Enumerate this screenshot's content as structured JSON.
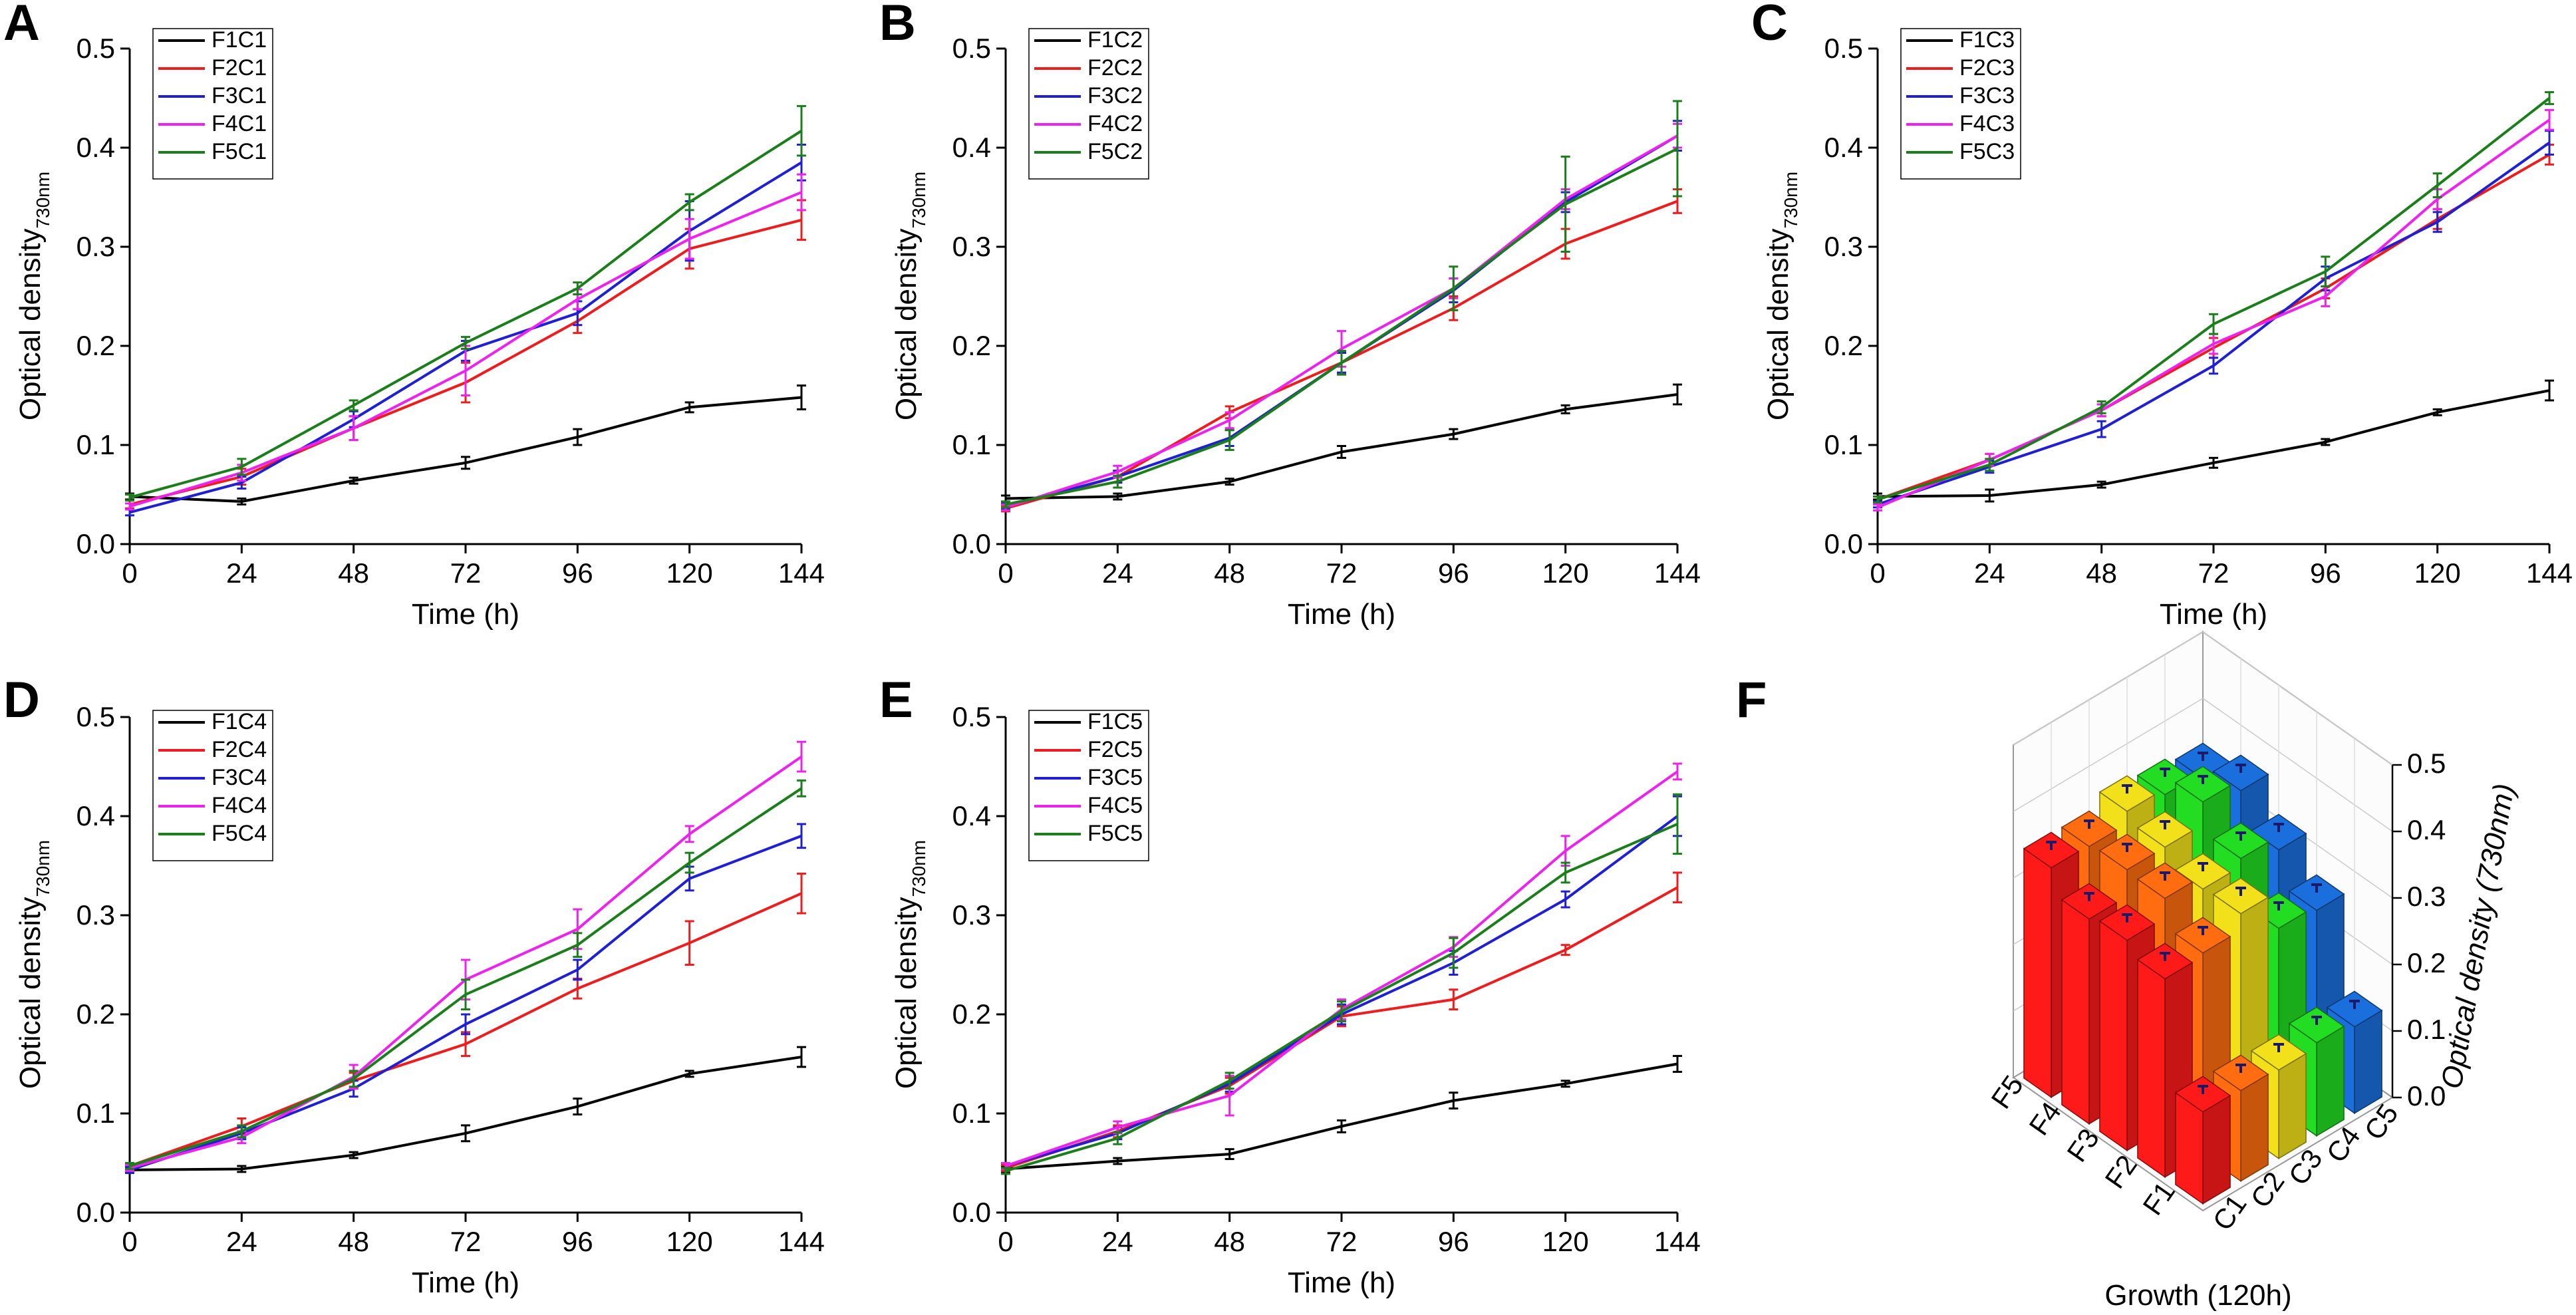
{
  "figure": {
    "series_colors": [
      "#000000",
      "#ee1c1c",
      "#1f1fd6",
      "#ee22ee",
      "#1a7f1a"
    ],
    "ylabel": "Optical density",
    "ylabel_sub": "730nm",
    "xlabel": "Time (h)"
  },
  "chart_data": [
    {
      "panel": "A",
      "type": "line",
      "x": [
        0,
        24,
        48,
        72,
        96,
        120,
        144
      ],
      "xticks": [
        "0",
        "24",
        "48",
        "72",
        "96",
        "120",
        "144"
      ],
      "yticks": [
        "0.0",
        "0.1",
        "0.2",
        "0.3",
        "0.4",
        "0.5"
      ],
      "xlim": [
        0,
        144
      ],
      "ylim": [
        0,
        0.5
      ],
      "series": [
        {
          "name": "F1C1",
          "values": [
            0.048,
            0.043,
            0.064,
            0.082,
            0.108,
            0.138,
            0.148
          ],
          "err": [
            0.003,
            0.003,
            0.003,
            0.006,
            0.008,
            0.005,
            0.012
          ]
        },
        {
          "name": "F2C1",
          "values": [
            0.04,
            0.068,
            0.117,
            0.163,
            0.225,
            0.298,
            0.327
          ],
          "err": [
            0.004,
            0.008,
            0.012,
            0.02,
            0.012,
            0.02,
            0.02
          ]
        },
        {
          "name": "F3C1",
          "values": [
            0.032,
            0.062,
            0.126,
            0.195,
            0.233,
            0.316,
            0.385
          ],
          "err": [
            0.003,
            0.006,
            0.008,
            0.01,
            0.012,
            0.03,
            0.018
          ]
        },
        {
          "name": "F4C1",
          "values": [
            0.038,
            0.072,
            0.117,
            0.175,
            0.247,
            0.308,
            0.355
          ],
          "err": [
            0.003,
            0.008,
            0.012,
            0.025,
            0.01,
            0.02,
            0.018
          ]
        },
        {
          "name": "F5C1",
          "values": [
            0.047,
            0.078,
            0.14,
            0.203,
            0.258,
            0.345,
            0.417
          ],
          "err": [
            0.003,
            0.008,
            0.005,
            0.006,
            0.006,
            0.008,
            0.025
          ]
        }
      ]
    },
    {
      "panel": "B",
      "type": "line",
      "x": [
        0,
        24,
        48,
        72,
        96,
        120,
        144
      ],
      "xticks": [
        "0",
        "24",
        "48",
        "72",
        "96",
        "120",
        "144"
      ],
      "yticks": [
        "0.0",
        "0.1",
        "0.2",
        "0.3",
        "0.4",
        "0.5"
      ],
      "xlim": [
        0,
        144
      ],
      "ylim": [
        0,
        0.5
      ],
      "series": [
        {
          "name": "F1C2",
          "values": [
            0.046,
            0.048,
            0.063,
            0.093,
            0.111,
            0.136,
            0.151
          ],
          "err": [
            0.003,
            0.003,
            0.003,
            0.006,
            0.005,
            0.004,
            0.01
          ]
        },
        {
          "name": "F2C2",
          "values": [
            0.036,
            0.068,
            0.133,
            0.183,
            0.238,
            0.303,
            0.346
          ],
          "err": [
            0.003,
            0.006,
            0.006,
            0.01,
            0.012,
            0.015,
            0.012
          ]
        },
        {
          "name": "F3C2",
          "values": [
            0.038,
            0.068,
            0.107,
            0.183,
            0.256,
            0.345,
            0.412
          ],
          "err": [
            0.003,
            0.006,
            0.008,
            0.01,
            0.012,
            0.01,
            0.015
          ]
        },
        {
          "name": "F4C2",
          "values": [
            0.037,
            0.073,
            0.125,
            0.197,
            0.258,
            0.348,
            0.412
          ],
          "err": [
            0.003,
            0.006,
            0.008,
            0.018,
            0.01,
            0.01,
            0.012
          ]
        },
        {
          "name": "F5C2",
          "values": [
            0.04,
            0.063,
            0.105,
            0.183,
            0.258,
            0.343,
            0.399
          ],
          "err": [
            0.003,
            0.006,
            0.01,
            0.012,
            0.022,
            0.048,
            0.048
          ]
        }
      ]
    },
    {
      "panel": "C",
      "type": "line",
      "x": [
        0,
        24,
        48,
        72,
        96,
        120,
        144
      ],
      "xticks": [
        "0",
        "24",
        "48",
        "72",
        "96",
        "120",
        "144"
      ],
      "yticks": [
        "0.0",
        "0.1",
        "0.2",
        "0.3",
        "0.4",
        "0.5"
      ],
      "xlim": [
        0,
        144
      ],
      "ylim": [
        0,
        0.5
      ],
      "series": [
        {
          "name": "F1C3",
          "values": [
            0.048,
            0.049,
            0.06,
            0.082,
            0.103,
            0.133,
            0.155
          ],
          "err": [
            0.003,
            0.006,
            0.003,
            0.005,
            0.003,
            0.003,
            0.01
          ]
        },
        {
          "name": "F2C3",
          "values": [
            0.045,
            0.085,
            0.135,
            0.198,
            0.258,
            0.328,
            0.393
          ],
          "err": [
            0.003,
            0.006,
            0.006,
            0.01,
            0.01,
            0.01,
            0.01
          ]
        },
        {
          "name": "F3C3",
          "values": [
            0.04,
            0.078,
            0.116,
            0.18,
            0.268,
            0.325,
            0.405
          ],
          "err": [
            0.003,
            0.006,
            0.008,
            0.008,
            0.012,
            0.01,
            0.012
          ]
        },
        {
          "name": "F4C3",
          "values": [
            0.037,
            0.085,
            0.135,
            0.202,
            0.25,
            0.348,
            0.428
          ],
          "err": [
            0.003,
            0.006,
            0.006,
            0.01,
            0.01,
            0.01,
            0.01
          ]
        },
        {
          "name": "F5C3",
          "values": [
            0.045,
            0.08,
            0.138,
            0.222,
            0.275,
            0.362,
            0.45
          ],
          "err": [
            0.003,
            0.006,
            0.006,
            0.01,
            0.015,
            0.012,
            0.006
          ]
        }
      ]
    },
    {
      "panel": "D",
      "type": "line",
      "x": [
        0,
        24,
        48,
        72,
        96,
        120,
        144
      ],
      "xticks": [
        "0",
        "24",
        "48",
        "72",
        "96",
        "120",
        "144"
      ],
      "yticks": [
        "0.0",
        "0.1",
        "0.2",
        "0.3",
        "0.4",
        "0.5"
      ],
      "xlim": [
        0,
        144
      ],
      "ylim": [
        0,
        0.5
      ],
      "series": [
        {
          "name": "F1C4",
          "values": [
            0.043,
            0.044,
            0.058,
            0.08,
            0.107,
            0.14,
            0.157
          ],
          "err": [
            0.003,
            0.003,
            0.003,
            0.008,
            0.008,
            0.003,
            0.01
          ]
        },
        {
          "name": "F2C4",
          "values": [
            0.047,
            0.087,
            0.133,
            0.17,
            0.226,
            0.272,
            0.322
          ],
          "err": [
            0.003,
            0.008,
            0.008,
            0.012,
            0.01,
            0.022,
            0.02
          ]
        },
        {
          "name": "F3C4",
          "values": [
            0.043,
            0.08,
            0.125,
            0.19,
            0.245,
            0.337,
            0.38
          ],
          "err": [
            0.003,
            0.006,
            0.008,
            0.01,
            0.01,
            0.012,
            0.012
          ]
        },
        {
          "name": "F4C4",
          "values": [
            0.045,
            0.076,
            0.137,
            0.235,
            0.286,
            0.382,
            0.46
          ],
          "err": [
            0.003,
            0.006,
            0.012,
            0.02,
            0.02,
            0.008,
            0.015
          ]
        },
        {
          "name": "F5C4",
          "values": [
            0.047,
            0.082,
            0.135,
            0.22,
            0.27,
            0.353,
            0.428
          ],
          "err": [
            0.003,
            0.006,
            0.008,
            0.015,
            0.012,
            0.01,
            0.008
          ]
        }
      ]
    },
    {
      "panel": "E",
      "type": "line",
      "x": [
        0,
        24,
        48,
        72,
        96,
        120,
        144
      ],
      "xticks": [
        "0",
        "24",
        "48",
        "72",
        "96",
        "120",
        "144"
      ],
      "yticks": [
        "0.0",
        "0.1",
        "0.2",
        "0.3",
        "0.4",
        "0.5"
      ],
      "xlim": [
        0,
        144
      ],
      "ylim": [
        0,
        0.5
      ],
      "series": [
        {
          "name": "F1C5",
          "values": [
            0.044,
            0.052,
            0.059,
            0.087,
            0.113,
            0.13,
            0.15
          ],
          "err": [
            0.003,
            0.003,
            0.005,
            0.006,
            0.008,
            0.003,
            0.008
          ]
        },
        {
          "name": "F2C5",
          "values": [
            0.045,
            0.082,
            0.128,
            0.198,
            0.215,
            0.265,
            0.328
          ],
          "err": [
            0.003,
            0.006,
            0.008,
            0.01,
            0.01,
            0.005,
            0.015
          ]
        },
        {
          "name": "F3C5",
          "values": [
            0.047,
            0.08,
            0.13,
            0.2,
            0.252,
            0.316,
            0.4
          ],
          "err": [
            0.003,
            0.006,
            0.008,
            0.01,
            0.012,
            0.008,
            0.02
          ]
        },
        {
          "name": "F4C5",
          "values": [
            0.047,
            0.086,
            0.118,
            0.205,
            0.268,
            0.365,
            0.445
          ],
          "err": [
            0.003,
            0.006,
            0.02,
            0.01,
            0.01,
            0.015,
            0.008
          ]
        },
        {
          "name": "F5C5",
          "values": [
            0.042,
            0.075,
            0.133,
            0.203,
            0.262,
            0.343,
            0.392
          ],
          "err": [
            0.003,
            0.006,
            0.008,
            0.01,
            0.015,
            0.01,
            0.03
          ]
        }
      ]
    },
    {
      "panel": "F",
      "type": "bar3d",
      "title": "Growth (120h)",
      "zlabel": "Optical density (730nm)",
      "rows": [
        "F1",
        "F2",
        "F3",
        "F4",
        "F5"
      ],
      "cols": [
        "C1",
        "C2",
        "C3",
        "C4",
        "C5"
      ],
      "zticks": [
        "0.0",
        "0.1",
        "0.2",
        "0.3",
        "0.4",
        "0.5"
      ],
      "zlim": [
        0,
        0.5
      ],
      "col_colors": [
        "#ff1a1a",
        "#ff6d10",
        "#f2e11a",
        "#22dd22",
        "#1a6fdd"
      ],
      "values": [
        [
          0.138,
          0.136,
          0.133,
          0.14,
          0.13
        ],
        [
          0.298,
          0.303,
          0.328,
          0.272,
          0.265
        ],
        [
          0.316,
          0.345,
          0.325,
          0.337,
          0.316
        ],
        [
          0.308,
          0.348,
          0.348,
          0.382,
          0.365
        ],
        [
          0.345,
          0.343,
          0.362,
          0.353,
          0.343
        ]
      ]
    }
  ]
}
